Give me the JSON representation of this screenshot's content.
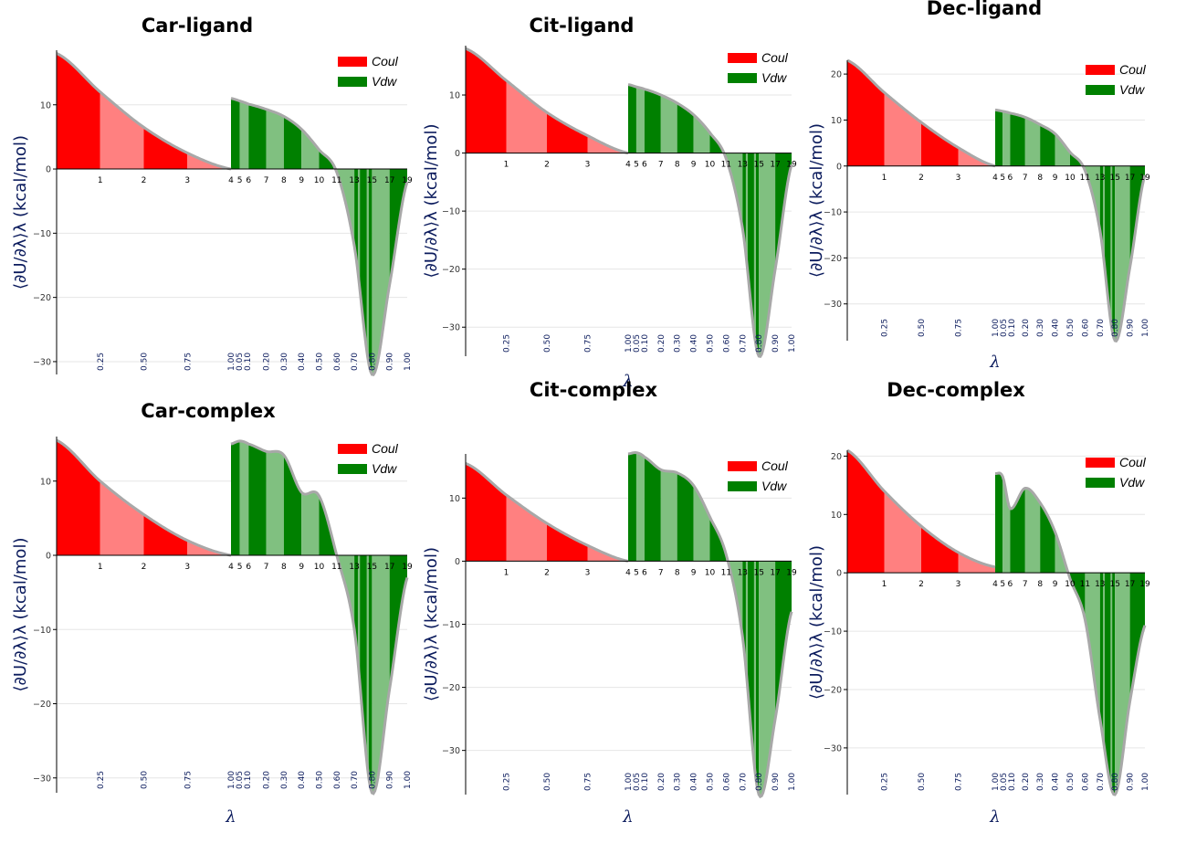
{
  "figure": {
    "colors": {
      "coul_dark": "#ff0000",
      "coul_light": "#ff8080",
      "vdw_dark": "#008000",
      "vdw_light": "#80c080",
      "curve": "#a8a8a8",
      "label": "#0a1a5c"
    },
    "ylabel": "⟨∂U/∂λ⟩λ (kcal/mol)",
    "xlabel": "λ",
    "legend": [
      "Coul",
      "Vdw"
    ]
  },
  "chart_data": [
    {
      "type": "area",
      "title": "Car-ligand",
      "ylim": [
        -32,
        18.5
      ],
      "yticks": [
        -30,
        -20,
        -10,
        0,
        10
      ],
      "state_labels": [
        "1",
        "2",
        "3",
        "4",
        "5",
        "6",
        "7",
        "8",
        "9",
        "10",
        "11",
        "13",
        "15",
        "17",
        "19"
      ],
      "lambda_labels": [
        "0.25",
        "0.50",
        "0.75",
        "1.00",
        "0.05",
        "0.10",
        "0.20",
        "0.30",
        "0.40",
        "0.50",
        "0.60",
        "0.70",
        "0.80",
        "0.90",
        "1.00"
      ],
      "coul": {
        "x": [
          0,
          0.25,
          0.5,
          0.75,
          1.0
        ],
        "y": [
          18,
          12,
          6.5,
          2.5,
          0
        ]
      },
      "vdw": {
        "x": [
          0,
          0.05,
          0.1,
          0.2,
          0.3,
          0.4,
          0.5,
          0.6,
          0.7,
          0.8,
          0.9,
          1.0
        ],
        "y": [
          11,
          10.6,
          10.1,
          9.3,
          8.2,
          6.2,
          3,
          -0.5,
          -12,
          -32,
          -18,
          -2
        ]
      }
    },
    {
      "type": "area",
      "title": "Cit-ligand",
      "ylim": [
        -35,
        18.5
      ],
      "yticks": [
        -30,
        -20,
        -10,
        0,
        10
      ],
      "state_labels": [
        "1",
        "2",
        "3",
        "4",
        "5",
        "6",
        "7",
        "8",
        "9",
        "10",
        "11",
        "13",
        "15",
        "17",
        "19"
      ],
      "lambda_labels": [
        "0.25",
        "0.50",
        "0.75",
        "1.00",
        "0.05",
        "0.10",
        "0.20",
        "0.30",
        "0.40",
        "0.50",
        "0.60",
        "0.70",
        "0.80",
        "0.90",
        "1.00"
      ],
      "coul": {
        "x": [
          0,
          0.25,
          0.5,
          0.75,
          1.0
        ],
        "y": [
          18,
          12.5,
          7,
          3,
          0
        ]
      },
      "vdw": {
        "x": [
          0,
          0.05,
          0.1,
          0.2,
          0.3,
          0.4,
          0.5,
          0.6,
          0.7,
          0.8,
          0.9,
          1.0
        ],
        "y": [
          11.8,
          11.4,
          11,
          10,
          8.6,
          6.6,
          3.5,
          -1,
          -13,
          -35,
          -20,
          -2
        ]
      }
    },
    {
      "type": "area",
      "title": "Dec-ligand",
      "ylim": [
        -38,
        23
      ],
      "yticks": [
        -30,
        -20,
        -10,
        0,
        10,
        20
      ],
      "state_labels": [
        "1",
        "2",
        "3",
        "4",
        "5",
        "6",
        "7",
        "8",
        "9",
        "10",
        "11",
        "13",
        "15",
        "17",
        "19"
      ],
      "lambda_labels": [
        "0.25",
        "0.50",
        "0.75",
        "1.00",
        "0.05",
        "0.10",
        "0.20",
        "0.30",
        "0.40",
        "0.50",
        "0.60",
        "0.70",
        "0.80",
        "0.90",
        "1.00"
      ],
      "coul": {
        "x": [
          0,
          0.25,
          0.5,
          0.75,
          1.0
        ],
        "y": [
          23,
          16,
          9.5,
          4,
          0
        ]
      },
      "vdw": {
        "x": [
          0,
          0.05,
          0.1,
          0.2,
          0.3,
          0.4,
          0.5,
          0.6,
          0.7,
          0.8,
          0.9,
          1.0
        ],
        "y": [
          12.2,
          11.9,
          11.5,
          10.6,
          9,
          7,
          3,
          -1,
          -14,
          -38,
          -22,
          -2
        ]
      }
    },
    {
      "type": "area",
      "title": "Car-complex",
      "ylim": [
        -32,
        16
      ],
      "yticks": [
        -30,
        -20,
        -10,
        0,
        10
      ],
      "state_labels": [
        "1",
        "2",
        "3",
        "4",
        "5",
        "6",
        "7",
        "8",
        "9",
        "10",
        "11",
        "13",
        "15",
        "17",
        "19"
      ],
      "lambda_labels": [
        "0.25",
        "0.50",
        "0.75",
        "1.00",
        "0.05",
        "0.10",
        "0.20",
        "0.30",
        "0.40",
        "0.50",
        "0.60",
        "0.70",
        "0.80",
        "0.90",
        "1.00"
      ],
      "coul": {
        "x": [
          0,
          0.25,
          0.5,
          0.75,
          1.0
        ],
        "y": [
          15.5,
          10,
          5.5,
          2,
          0
        ]
      },
      "vdw": {
        "x": [
          0,
          0.05,
          0.1,
          0.2,
          0.3,
          0.4,
          0.5,
          0.6,
          0.7,
          0.8,
          0.9,
          1.0
        ],
        "y": [
          15,
          15.4,
          15,
          14,
          13.5,
          8.5,
          8,
          0,
          -10,
          -32,
          -18,
          -3
        ]
      }
    },
    {
      "type": "area",
      "title": "Cit-complex",
      "ylim": [
        -37,
        17
      ],
      "yticks": [
        -30,
        -20,
        -10,
        0,
        10
      ],
      "state_labels": [
        "1",
        "2",
        "3",
        "4",
        "5",
        "6",
        "7",
        "8",
        "9",
        "10",
        "11",
        "13",
        "15",
        "17",
        "19"
      ],
      "lambda_labels": [
        "0.25",
        "0.50",
        "0.75",
        "1.00",
        "0.05",
        "0.10",
        "0.20",
        "0.30",
        "0.40",
        "0.50",
        "0.60",
        "0.70",
        "0.80",
        "0.90",
        "1.00"
      ],
      "coul": {
        "x": [
          0,
          0.25,
          0.5,
          0.75,
          1.0
        ],
        "y": [
          15.5,
          10.5,
          6,
          2.5,
          0
        ]
      },
      "vdw": {
        "x": [
          0,
          0.05,
          0.1,
          0.2,
          0.3,
          0.4,
          0.5,
          0.6,
          0.7,
          0.8,
          0.9,
          1.0
        ],
        "y": [
          17,
          17.2,
          16.5,
          14.5,
          14,
          12,
          7,
          1,
          -12,
          -37,
          -25,
          -8
        ]
      }
    },
    {
      "type": "area",
      "title": "Dec-complex",
      "ylim": [
        -38,
        21
      ],
      "yticks": [
        -30,
        -20,
        -10,
        0,
        10,
        20
      ],
      "state_labels": [
        "1",
        "2",
        "3",
        "4",
        "5",
        "6",
        "7",
        "8",
        "9",
        "10",
        "11",
        "13",
        "15",
        "17",
        "19"
      ],
      "lambda_labels": [
        "0.25",
        "0.50",
        "0.75",
        "1.00",
        "0.05",
        "0.10",
        "0.20",
        "0.30",
        "0.40",
        "0.50",
        "0.60",
        "0.70",
        "0.80",
        "0.90",
        "1.00"
      ],
      "coul": {
        "x": [
          0,
          0.25,
          0.5,
          0.75,
          1.0
        ],
        "y": [
          21,
          14,
          8,
          3.5,
          1
        ]
      },
      "vdw": {
        "x": [
          0,
          0.05,
          0.1,
          0.2,
          0.3,
          0.4,
          0.5,
          0.6,
          0.7,
          0.8,
          0.9,
          1.0
        ],
        "y": [
          17,
          16.5,
          11,
          14.5,
          12,
          7,
          -1,
          -8,
          -25,
          -38,
          -22,
          -9
        ]
      }
    }
  ]
}
